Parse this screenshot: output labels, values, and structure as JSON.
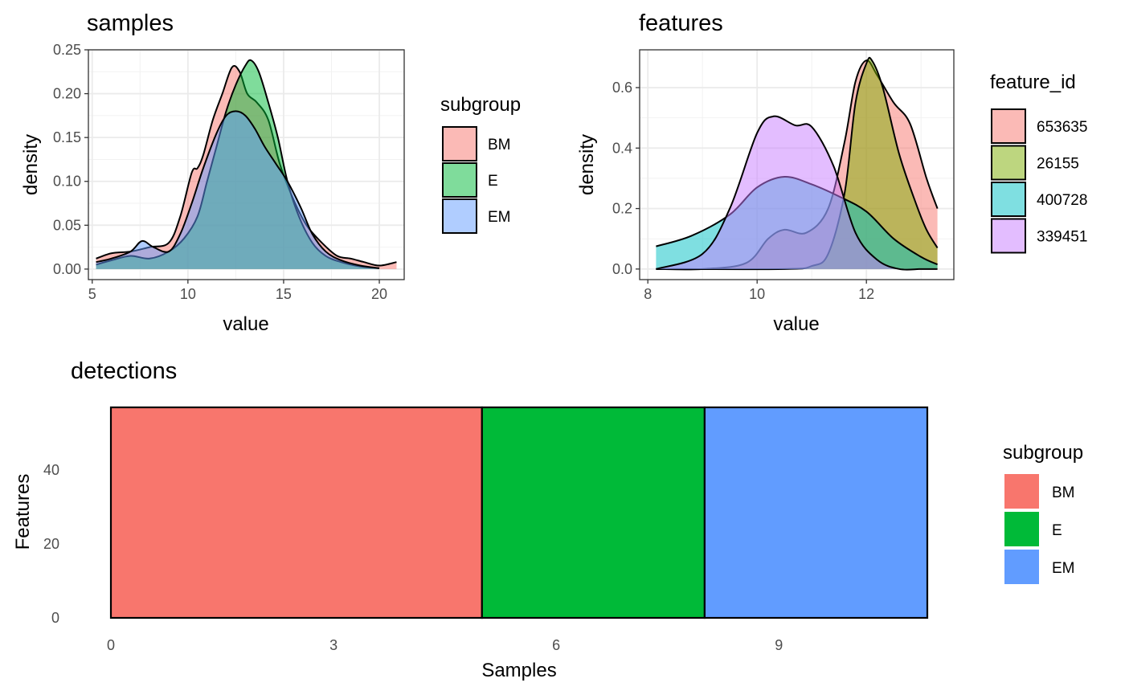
{
  "colors": {
    "BM": "#F8766D",
    "E": "#00BA38",
    "EM": "#619CFF",
    "feature_653635": "#F8766D",
    "feature_26155": "#7CAE00",
    "feature_400728": "#00BFC4",
    "feature_339451": "#C77CFF"
  },
  "chart_data": [
    {
      "id": "samples",
      "type": "area",
      "title": "samples",
      "xlabel": "value",
      "ylabel": "density",
      "xlim": [
        4.8,
        21.3
      ],
      "ylim": [
        -0.012,
        0.25
      ],
      "xticks": [
        5,
        10,
        15,
        20
      ],
      "yticks": [
        0.0,
        0.05,
        0.1,
        0.15,
        0.2,
        0.25
      ],
      "ytick_labels": [
        "0.00",
        "0.05",
        "0.10",
        "0.15",
        "0.20",
        "0.25"
      ],
      "grid": true,
      "legend": {
        "title": "subgroup",
        "position": "right",
        "entries": [
          "BM",
          "E",
          "EM"
        ]
      },
      "series": [
        {
          "name": "BM",
          "x": [
            5.2,
            6,
            7,
            8,
            9,
            9.6,
            10.2,
            10.5,
            10.8,
            11.3,
            11.8,
            12.3,
            12.7,
            13.1,
            13.6,
            14.2,
            14.8,
            15.5,
            16.2,
            17,
            17.8,
            18.5,
            19.2,
            20,
            20.9
          ],
          "y": [
            0.012,
            0.018,
            0.02,
            0.025,
            0.03,
            0.06,
            0.11,
            0.115,
            0.13,
            0.17,
            0.2,
            0.23,
            0.225,
            0.2,
            0.19,
            0.17,
            0.12,
            0.08,
            0.05,
            0.03,
            0.015,
            0.012,
            0.008,
            0.004,
            0.008
          ]
        },
        {
          "name": "E",
          "x": [
            5.2,
            6,
            7,
            8,
            9,
            9.8,
            10.5,
            11,
            11.5,
            12,
            12.5,
            13,
            13.3,
            13.7,
            14.2,
            14.7,
            15.2,
            15.8,
            16.5,
            17.2,
            18,
            19,
            20
          ],
          "y": [
            0.005,
            0.01,
            0.015,
            0.012,
            0.02,
            0.035,
            0.06,
            0.1,
            0.14,
            0.18,
            0.21,
            0.232,
            0.238,
            0.225,
            0.19,
            0.15,
            0.1,
            0.06,
            0.03,
            0.015,
            0.008,
            0.003,
            0.001
          ]
        },
        {
          "name": "EM",
          "x": [
            5.2,
            6,
            7,
            7.6,
            8.2,
            9,
            9.6,
            10.2,
            10.8,
            11.5,
            12,
            12.5,
            13,
            13.5,
            14,
            14.6,
            15.2,
            15.9,
            16.5,
            17.2,
            18,
            19,
            20
          ],
          "y": [
            0.008,
            0.012,
            0.02,
            0.032,
            0.025,
            0.02,
            0.04,
            0.075,
            0.115,
            0.155,
            0.175,
            0.18,
            0.175,
            0.16,
            0.14,
            0.12,
            0.1,
            0.07,
            0.04,
            0.02,
            0.01,
            0.004,
            0.001
          ]
        }
      ]
    },
    {
      "id": "features",
      "type": "area",
      "title": "features",
      "xlabel": "value",
      "ylabel": "density",
      "xlim": [
        7.85,
        13.6
      ],
      "ylim": [
        -0.035,
        0.725
      ],
      "xticks": [
        8,
        10,
        12
      ],
      "yticks": [
        0.0,
        0.2,
        0.4,
        0.6
      ],
      "ytick_labels": [
        "0.0",
        "0.2",
        "0.4",
        "0.6"
      ],
      "grid": true,
      "legend": {
        "title": "feature_id",
        "position": "right",
        "entries": [
          "653635",
          "26155",
          "400728",
          "339451"
        ]
      },
      "series": [
        {
          "name": "653635",
          "x": [
            8.15,
            9,
            9.8,
            10.2,
            10.5,
            10.9,
            11.3,
            11.6,
            11.8,
            12.0,
            12.2,
            12.5,
            12.8,
            13.1,
            13.3
          ],
          "y": [
            0.0,
            0.0,
            0.02,
            0.1,
            0.13,
            0.12,
            0.2,
            0.42,
            0.62,
            0.69,
            0.64,
            0.55,
            0.48,
            0.3,
            0.2
          ]
        },
        {
          "name": "26155",
          "x": [
            8.15,
            10.5,
            11.0,
            11.3,
            11.6,
            11.8,
            12.0,
            12.1,
            12.3,
            12.6,
            12.9,
            13.1,
            13.3
          ],
          "y": [
            0.0,
            0.0,
            0.01,
            0.05,
            0.25,
            0.55,
            0.68,
            0.69,
            0.6,
            0.38,
            0.22,
            0.13,
            0.07
          ]
        },
        {
          "name": "400728",
          "x": [
            8.15,
            8.8,
            9.5,
            10.0,
            10.5,
            11.0,
            11.5,
            12.0,
            12.5,
            13.0,
            13.3
          ],
          "y": [
            0.075,
            0.11,
            0.18,
            0.27,
            0.305,
            0.28,
            0.24,
            0.19,
            0.1,
            0.04,
            0.015
          ]
        },
        {
          "name": "339451",
          "x": [
            8.15,
            9.0,
            9.5,
            10.0,
            10.3,
            10.7,
            11.0,
            11.4,
            11.8,
            12.2,
            12.6,
            13.0,
            13.3
          ],
          "y": [
            0.0,
            0.05,
            0.2,
            0.45,
            0.505,
            0.475,
            0.47,
            0.34,
            0.12,
            0.03,
            0.0,
            0.0,
            0.0
          ]
        }
      ]
    },
    {
      "id": "detections",
      "type": "bar",
      "title": "detections",
      "xlabel": "Samples",
      "ylabel": "Features",
      "xlim": [
        0,
        11
      ],
      "ylim": [
        0,
        57
      ],
      "xticks": [
        0,
        3,
        6,
        9
      ],
      "yticks": [
        0,
        20,
        40
      ],
      "grid": false,
      "legend": {
        "title": "subgroup",
        "position": "right",
        "entries": [
          "BM",
          "E",
          "EM"
        ]
      },
      "bars": [
        {
          "group": "BM",
          "x0": 0,
          "x1": 5,
          "value": 57
        },
        {
          "group": "E",
          "x0": 5,
          "x1": 8,
          "value": 57
        },
        {
          "group": "EM",
          "x0": 8,
          "x1": 11,
          "value": 57
        }
      ]
    }
  ]
}
